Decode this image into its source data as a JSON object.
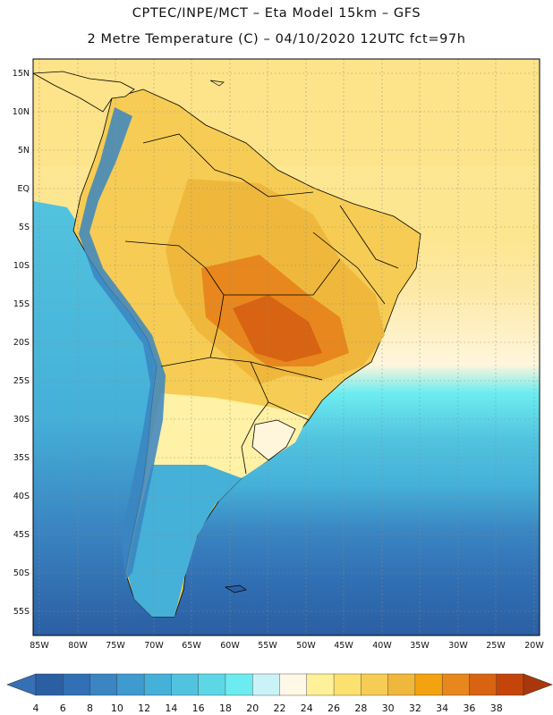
{
  "title_line1": "CPTEC/INPE/MCT –  Eta Model 15km – GFS",
  "title_line2": "2 Metre Temperature (C) – 04/10/2020 12UTC fct=97h",
  "lat_labels": [
    "15N",
    "10N",
    "5N",
    "EQ",
    "5S",
    "10S",
    "15S",
    "20S",
    "25S",
    "30S",
    "35S",
    "40S",
    "45S",
    "50S",
    "55S"
  ],
  "lon_labels": [
    "85W",
    "80W",
    "75W",
    "70W",
    "65W",
    "60W",
    "55W",
    "50W",
    "45W",
    "40W",
    "35W",
    "30W",
    "25W",
    "20W"
  ],
  "colorbar": {
    "labels": [
      "4",
      "6",
      "8",
      "10",
      "12",
      "14",
      "16",
      "18",
      "20",
      "22",
      "24",
      "26",
      "28",
      "30",
      "32",
      "34",
      "36",
      "38"
    ],
    "colors": [
      "#2b5fa3",
      "#3170b4",
      "#3a85c2",
      "#3f9ad0",
      "#45b0d8",
      "#52c3df",
      "#5dd7e6",
      "#6cecf0",
      "#caf3f8",
      "#fff8e6",
      "#fff09a",
      "#fce070",
      "#f6cc54",
      "#efb83c",
      "#f3a30f",
      "#e8871d",
      "#d86312",
      "#c5440c"
    ],
    "low_arrow_color": "#356fb5",
    "high_arrow_color": "#a8380b"
  }
}
